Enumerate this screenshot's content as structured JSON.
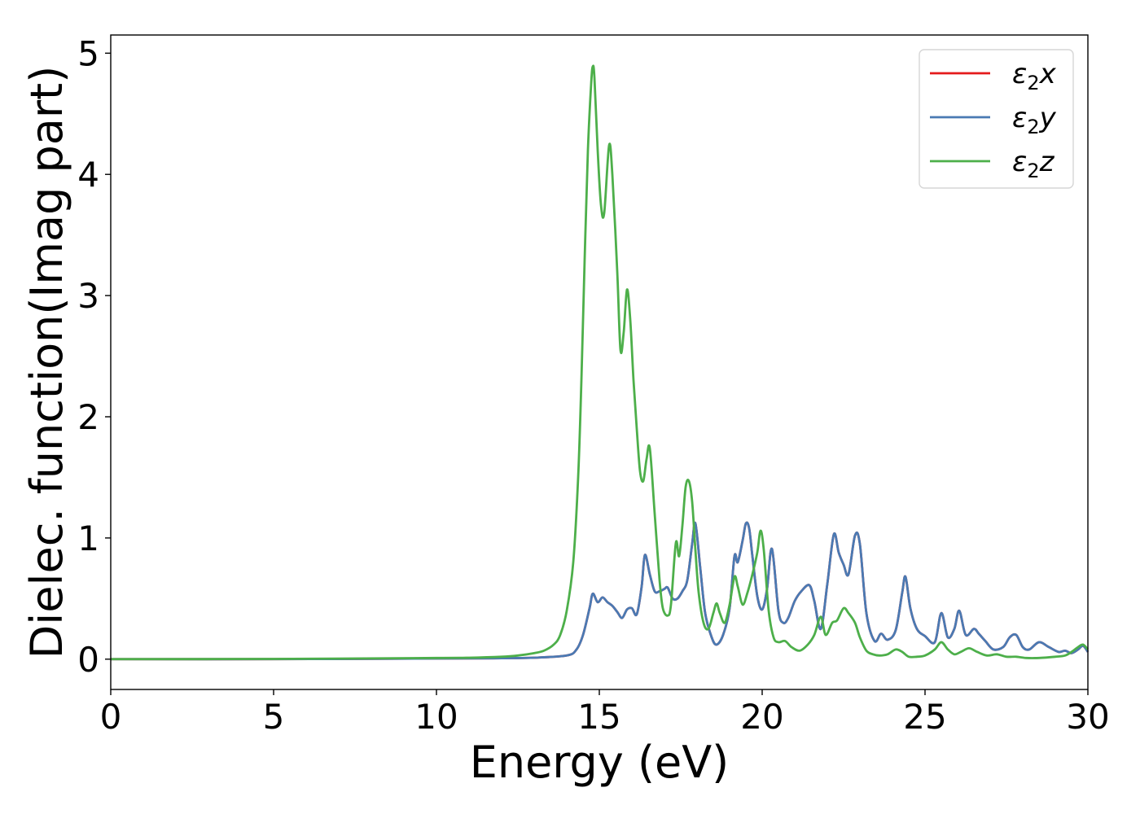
{
  "chart_data": {
    "type": "line",
    "xlabel": "Energy (eV)",
    "ylabel": "Dielec. function(Imag part)",
    "xlim": [
      0,
      30
    ],
    "ylim": [
      -0.25,
      5.15
    ],
    "xticks": [
      0,
      5,
      10,
      15,
      20,
      25,
      30
    ],
    "yticks": [
      0,
      1,
      2,
      3,
      4,
      5
    ],
    "grid": false,
    "legend_position": "top-right",
    "series": [
      {
        "name": "ε₂x",
        "legend_symbol": "ε",
        "legend_sub": "2",
        "legend_axis": "x",
        "color": "#e41a1c",
        "x": [
          0,
          5,
          10,
          12,
          13,
          14,
          14.3,
          14.5,
          14.7,
          14.8,
          14.95,
          15.1,
          15.25,
          15.4,
          15.55,
          15.7,
          15.85,
          16.0,
          16.15,
          16.3,
          16.4,
          16.55,
          16.7,
          16.85,
          17.0,
          17.1,
          17.25,
          17.4,
          17.55,
          17.7,
          17.85,
          17.95,
          18.1,
          18.25,
          18.45,
          18.6,
          18.8,
          19.0,
          19.15,
          19.25,
          19.4,
          19.5,
          19.6,
          19.7,
          19.85,
          20.0,
          20.15,
          20.3,
          20.5,
          20.65,
          20.8,
          21.0,
          21.2,
          21.45,
          21.6,
          21.8,
          22.0,
          22.2,
          22.35,
          22.5,
          22.65,
          22.85,
          23.0,
          23.2,
          23.45,
          23.65,
          23.85,
          24.1,
          24.3,
          24.4,
          24.55,
          24.75,
          25.0,
          25.3,
          25.5,
          25.7,
          25.9,
          26.05,
          26.25,
          26.5,
          26.65,
          26.85,
          27.1,
          27.4,
          27.6,
          27.8,
          28.0,
          28.2,
          28.5,
          28.8,
          29.1,
          29.3,
          29.5,
          29.7,
          29.85,
          30.0
        ],
        "values": [
          0,
          0,
          0.005,
          0.008,
          0.012,
          0.03,
          0.08,
          0.2,
          0.42,
          0.54,
          0.47,
          0.51,
          0.47,
          0.44,
          0.39,
          0.34,
          0.41,
          0.42,
          0.37,
          0.6,
          0.86,
          0.7,
          0.56,
          0.56,
          0.58,
          0.59,
          0.5,
          0.5,
          0.56,
          0.65,
          0.95,
          1.12,
          0.75,
          0.38,
          0.18,
          0.12,
          0.2,
          0.42,
          0.85,
          0.8,
          0.98,
          1.12,
          1.08,
          0.85,
          0.52,
          0.41,
          0.58,
          0.91,
          0.4,
          0.3,
          0.34,
          0.48,
          0.56,
          0.61,
          0.48,
          0.25,
          0.62,
          1.03,
          0.88,
          0.78,
          0.7,
          1.02,
          0.95,
          0.38,
          0.15,
          0.21,
          0.16,
          0.24,
          0.55,
          0.68,
          0.42,
          0.25,
          0.19,
          0.14,
          0.38,
          0.18,
          0.25,
          0.4,
          0.2,
          0.25,
          0.21,
          0.15,
          0.08,
          0.1,
          0.18,
          0.2,
          0.1,
          0.08,
          0.14,
          0.1,
          0.06,
          0.07,
          0.05,
          0.08,
          0.11,
          0.06
        ]
      },
      {
        "name": "ε₂y",
        "legend_symbol": "ε",
        "legend_sub": "2",
        "legend_axis": "y",
        "color": "#4a7ab3",
        "x": [
          0,
          5,
          10,
          12,
          13,
          14,
          14.3,
          14.5,
          14.7,
          14.8,
          14.95,
          15.1,
          15.25,
          15.4,
          15.55,
          15.7,
          15.85,
          16.0,
          16.15,
          16.3,
          16.4,
          16.55,
          16.7,
          16.85,
          17.0,
          17.1,
          17.25,
          17.4,
          17.55,
          17.7,
          17.85,
          17.95,
          18.1,
          18.25,
          18.45,
          18.6,
          18.8,
          19.0,
          19.15,
          19.25,
          19.4,
          19.5,
          19.6,
          19.7,
          19.85,
          20.0,
          20.15,
          20.3,
          20.5,
          20.65,
          20.8,
          21.0,
          21.2,
          21.45,
          21.6,
          21.8,
          22.0,
          22.2,
          22.35,
          22.5,
          22.65,
          22.85,
          23.0,
          23.2,
          23.45,
          23.65,
          23.85,
          24.1,
          24.3,
          24.4,
          24.55,
          24.75,
          25.0,
          25.3,
          25.5,
          25.7,
          25.9,
          26.05,
          26.25,
          26.5,
          26.65,
          26.85,
          27.1,
          27.4,
          27.6,
          27.8,
          28.0,
          28.2,
          28.5,
          28.8,
          29.1,
          29.3,
          29.5,
          29.7,
          29.85,
          30.0
        ],
        "values": [
          0,
          0,
          0.005,
          0.008,
          0.012,
          0.03,
          0.08,
          0.2,
          0.42,
          0.54,
          0.47,
          0.51,
          0.47,
          0.44,
          0.39,
          0.34,
          0.41,
          0.42,
          0.37,
          0.6,
          0.86,
          0.7,
          0.56,
          0.56,
          0.58,
          0.59,
          0.5,
          0.5,
          0.56,
          0.65,
          0.95,
          1.12,
          0.75,
          0.38,
          0.18,
          0.12,
          0.2,
          0.42,
          0.85,
          0.8,
          0.98,
          1.12,
          1.08,
          0.85,
          0.52,
          0.41,
          0.58,
          0.91,
          0.4,
          0.3,
          0.34,
          0.48,
          0.56,
          0.61,
          0.48,
          0.25,
          0.62,
          1.03,
          0.88,
          0.78,
          0.7,
          1.02,
          0.95,
          0.38,
          0.15,
          0.21,
          0.16,
          0.24,
          0.55,
          0.68,
          0.42,
          0.25,
          0.19,
          0.14,
          0.38,
          0.18,
          0.25,
          0.4,
          0.2,
          0.25,
          0.21,
          0.15,
          0.08,
          0.1,
          0.18,
          0.2,
          0.1,
          0.08,
          0.14,
          0.1,
          0.06,
          0.07,
          0.05,
          0.08,
          0.11,
          0.06
        ]
      },
      {
        "name": "ε₂z",
        "legend_symbol": "ε",
        "legend_sub": "2",
        "legend_axis": "z",
        "color": "#4daf4a",
        "x": [
          0,
          5,
          10,
          11,
          12,
          12.5,
          13,
          13.3,
          13.6,
          13.8,
          14.0,
          14.2,
          14.35,
          14.45,
          14.55,
          14.65,
          14.75,
          14.8,
          14.85,
          14.95,
          15.05,
          15.15,
          15.3,
          15.4,
          15.55,
          15.65,
          15.75,
          15.85,
          15.95,
          16.05,
          16.15,
          16.25,
          16.35,
          16.45,
          16.55,
          16.7,
          16.85,
          16.95,
          17.1,
          17.2,
          17.35,
          17.45,
          17.55,
          17.65,
          17.75,
          17.85,
          17.95,
          18.05,
          18.2,
          18.35,
          18.5,
          18.6,
          18.7,
          18.85,
          19.0,
          19.15,
          19.25,
          19.4,
          19.55,
          19.7,
          19.85,
          19.95,
          20.05,
          20.2,
          20.35,
          20.5,
          20.7,
          20.9,
          21.15,
          21.4,
          21.6,
          21.8,
          21.95,
          22.15,
          22.3,
          22.5,
          22.65,
          22.85,
          23.0,
          23.2,
          23.4,
          23.6,
          23.85,
          24.1,
          24.3,
          24.5,
          24.75,
          25.0,
          25.3,
          25.5,
          25.7,
          25.9,
          26.1,
          26.35,
          26.6,
          26.9,
          27.2,
          27.5,
          27.8,
          28.1,
          28.5,
          29.0,
          29.3,
          29.5,
          29.7,
          29.85,
          30.0
        ],
        "values": [
          0,
          0.002,
          0.01,
          0.012,
          0.02,
          0.03,
          0.05,
          0.07,
          0.12,
          0.2,
          0.4,
          0.8,
          1.5,
          2.3,
          3.3,
          4.2,
          4.75,
          4.89,
          4.8,
          4.2,
          3.75,
          3.68,
          4.24,
          4.0,
          3.2,
          2.55,
          2.7,
          3.05,
          2.8,
          2.3,
          1.9,
          1.55,
          1.47,
          1.65,
          1.74,
          1.2,
          0.65,
          0.42,
          0.36,
          0.45,
          0.96,
          0.85,
          1.1,
          1.42,
          1.47,
          1.3,
          0.9,
          0.55,
          0.3,
          0.25,
          0.38,
          0.46,
          0.38,
          0.3,
          0.45,
          0.68,
          0.6,
          0.45,
          0.55,
          0.7,
          0.88,
          1.06,
          0.9,
          0.4,
          0.18,
          0.14,
          0.15,
          0.1,
          0.07,
          0.12,
          0.2,
          0.35,
          0.2,
          0.3,
          0.32,
          0.42,
          0.38,
          0.3,
          0.18,
          0.07,
          0.04,
          0.03,
          0.04,
          0.08,
          0.06,
          0.02,
          0.02,
          0.03,
          0.08,
          0.14,
          0.08,
          0.04,
          0.06,
          0.09,
          0.06,
          0.03,
          0.04,
          0.02,
          0.02,
          0.01,
          0.01,
          0.02,
          0.03,
          0.06,
          0.1,
          0.12,
          0.08
        ]
      }
    ]
  }
}
